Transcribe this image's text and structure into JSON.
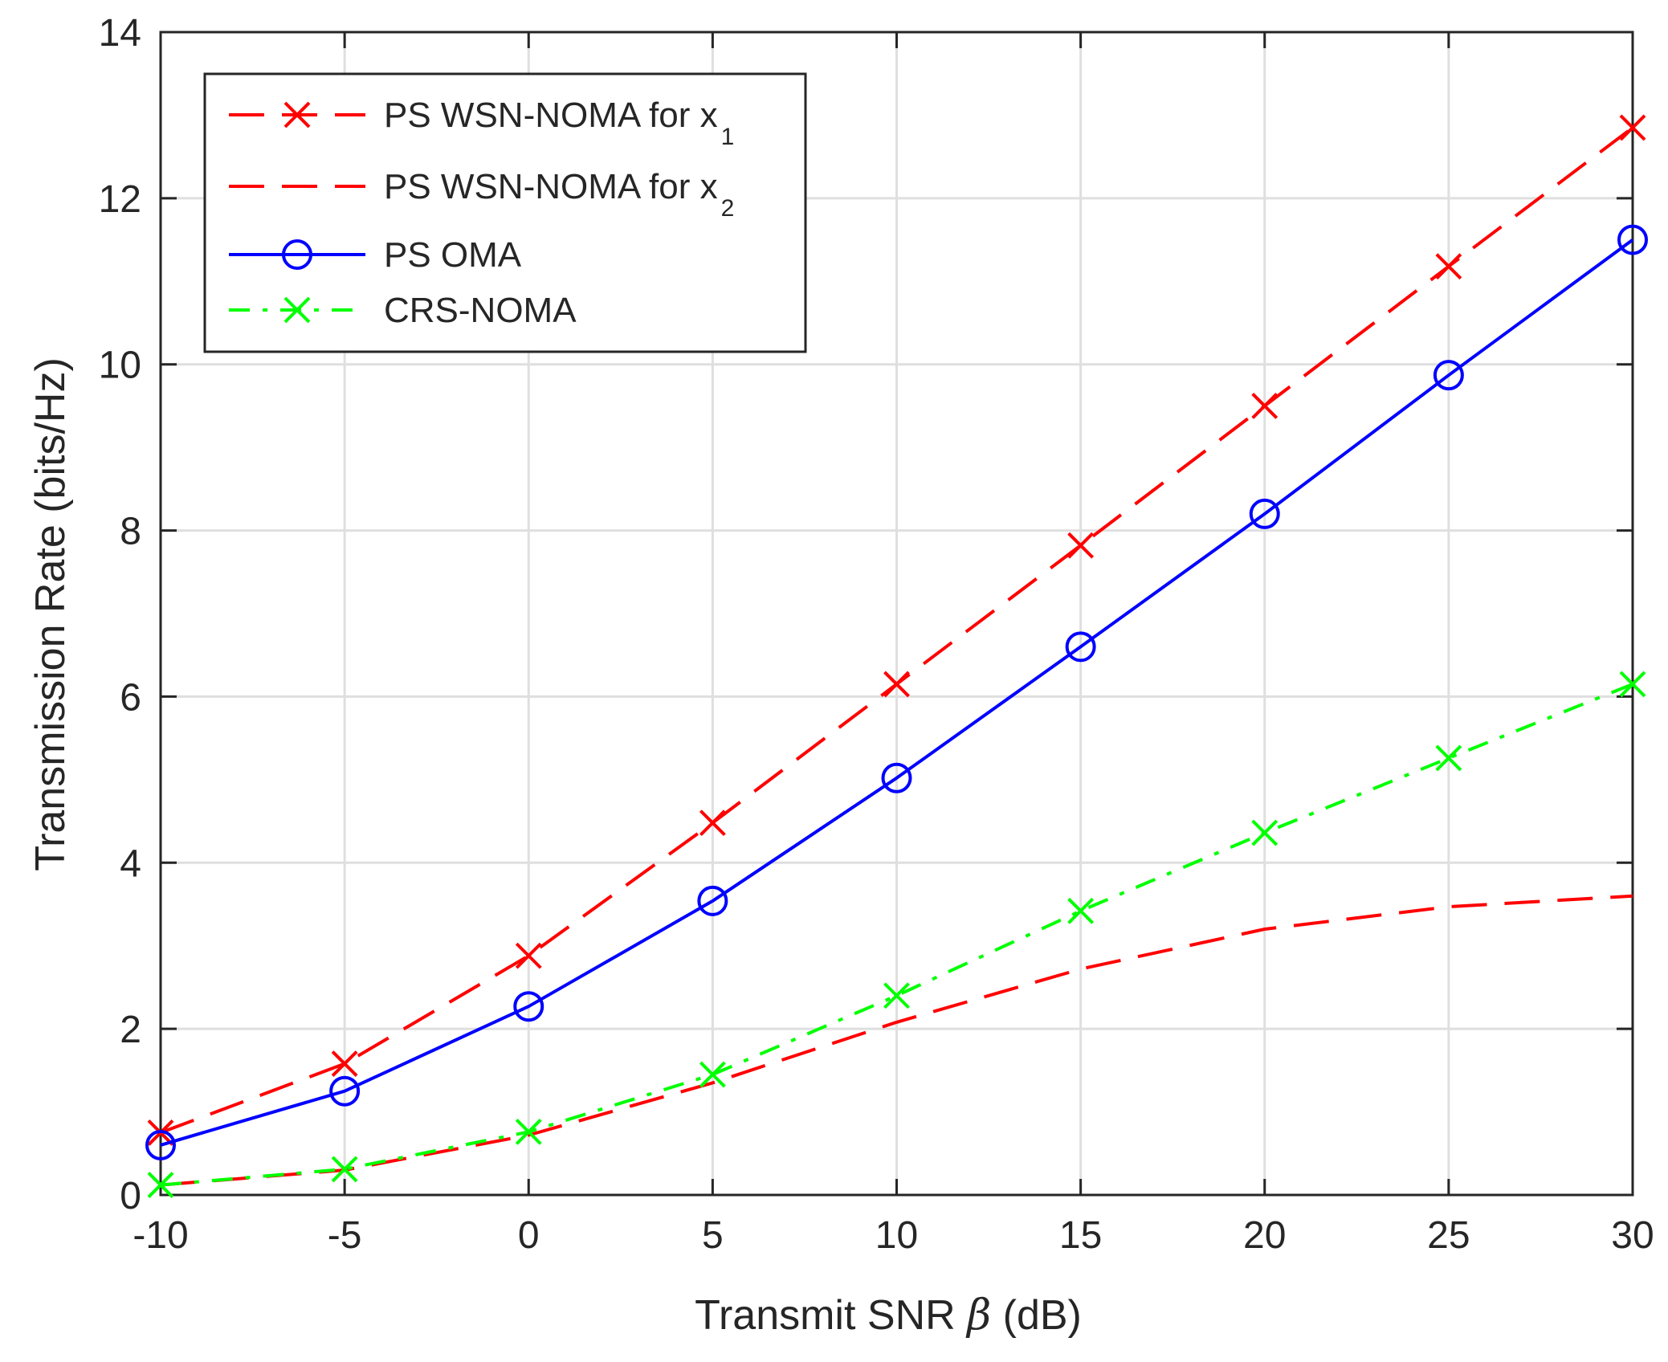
{
  "chart_data": {
    "type": "line",
    "title": "",
    "xlabel": "Transmit SNR β (dB)",
    "xlabel_parts": {
      "before": "Transmit SNR ",
      "symbol": "β",
      "after": " (dB)"
    },
    "ylabel": "Transmission Rate (bits/Hz)",
    "xlim": [
      -10,
      30
    ],
    "ylim": [
      0,
      14
    ],
    "xticks": [
      -10,
      -5,
      0,
      5,
      10,
      15,
      20,
      25,
      30
    ],
    "yticks": [
      0,
      2,
      4,
      6,
      8,
      10,
      12,
      14
    ],
    "grid": true,
    "legend_location": "top-left",
    "x": [
      -10,
      -5,
      0,
      5,
      10,
      15,
      20,
      25,
      30
    ],
    "series": [
      {
        "name": "PS WSN-NOMA for x1",
        "label_main": "PS WSN-NOMA for x",
        "label_sub": "1",
        "color": "#ff0000",
        "line_style": "dashed",
        "marker": "x",
        "values": [
          0.75,
          1.58,
          2.88,
          4.48,
          6.15,
          7.82,
          9.5,
          11.18,
          12.85
        ]
      },
      {
        "name": "PS WSN-NOMA for x2",
        "label_main": "PS WSN-NOMA for x",
        "label_sub": "2",
        "color": "#ff0000",
        "line_style": "dashed",
        "marker": "none",
        "values": [
          0.12,
          0.3,
          0.72,
          1.35,
          2.08,
          2.72,
          3.2,
          3.47,
          3.6
        ]
      },
      {
        "name": "PS OMA",
        "label_main": "PS OMA",
        "label_sub": "",
        "color": "#0000ff",
        "line_style": "solid",
        "marker": "o",
        "values": [
          0.6,
          1.25,
          2.27,
          3.54,
          5.02,
          6.6,
          8.2,
          9.87,
          11.5
        ]
      },
      {
        "name": "CRS-NOMA",
        "label_main": "CRS-NOMA",
        "label_sub": "",
        "color": "#00ff00",
        "line_style": "dashdot",
        "marker": "x",
        "values": [
          0.12,
          0.31,
          0.76,
          1.45,
          2.4,
          3.42,
          4.36,
          5.26,
          6.15
        ]
      }
    ]
  }
}
